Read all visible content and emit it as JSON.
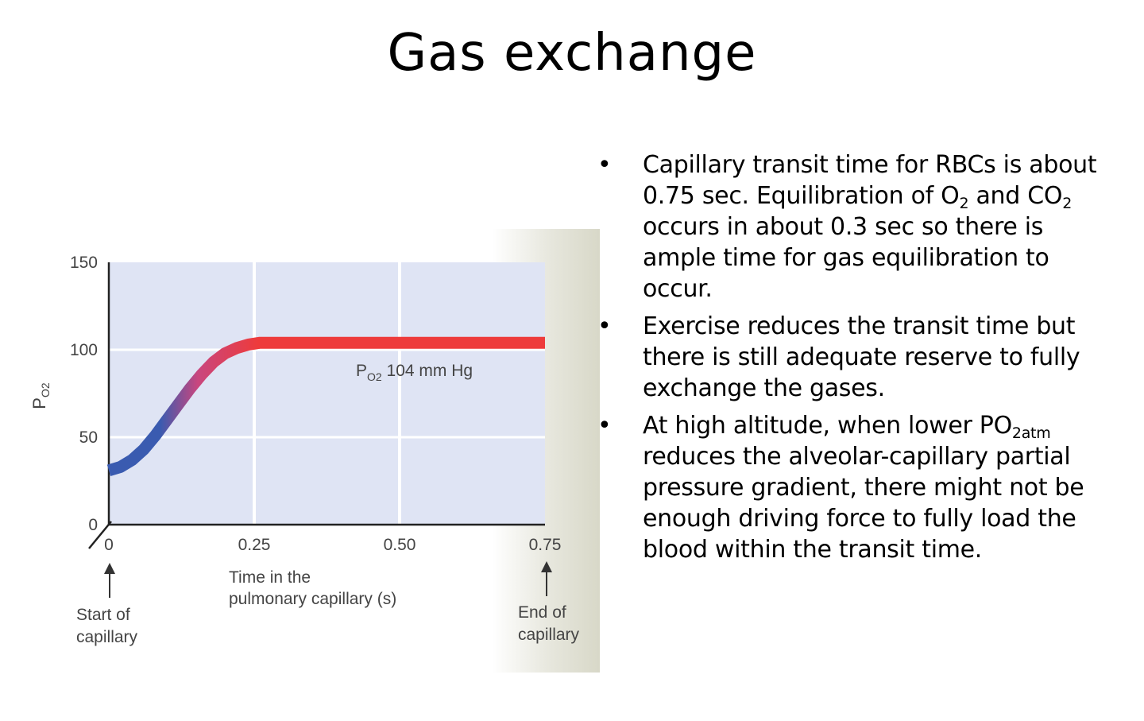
{
  "title": "Gas exchange",
  "chart_data": {
    "type": "line",
    "ylabel": "P",
    "ylabel_sub": "O2",
    "xlabel_line1": "Time in the",
    "xlabel_line2": "pulmonary capillary (s)",
    "xlim": [
      0,
      0.75
    ],
    "ylim": [
      0,
      150
    ],
    "x_ticks": [
      "0",
      "0.25",
      "0.50",
      "0.75"
    ],
    "x_tick_values": [
      0,
      0.25,
      0.5,
      0.75
    ],
    "y_ticks": [
      "150",
      "100",
      "50",
      "0"
    ],
    "y_tick_values": [
      150,
      100,
      50,
      0
    ],
    "grid": true,
    "series": [
      {
        "x": [
          0,
          0.02,
          0.04,
          0.06,
          0.08,
          0.1,
          0.12,
          0.14,
          0.16,
          0.18,
          0.2,
          0.22,
          0.24,
          0.26,
          0.3,
          0.4,
          0.5,
          0.6,
          0.75
        ],
        "y": [
          31,
          33,
          37,
          43,
          51,
          60,
          69,
          78,
          86,
          93,
          98,
          101,
          103,
          104,
          104,
          104,
          104,
          104,
          104
        ],
        "color_start": "#3a5bb0",
        "color_end": "#ee3b3b"
      }
    ],
    "annotation_main": "P",
    "annotation_sub": "O2",
    "annotation_rest": " 104 mm Hg",
    "start_label_line1": "Start of",
    "start_label_line2": "capillary",
    "end_label_line1": "End of",
    "end_label_line2": "capillary",
    "plot_bg": "#dfe4f4"
  },
  "bullets": {
    "b1": {
      "dot": "•",
      "t1": "Capillary transit time for RBCs is about 0.75 sec. Equilibration of O",
      "s1": "2",
      "t2": " and CO",
      "s2": "2",
      "t3": " occurs in about 0.3 sec so there is ample time for gas equilibration to occur."
    },
    "b2": {
      "dot": "•",
      "text": "Exercise reduces the transit time but there is still adequate reserve to fully exchange the gases."
    },
    "b3": {
      "dot": "•",
      "t1": "At high altitude, when lower PO",
      "s1": "2atm",
      "t2": " reduces the alveolar-capillary partial pressure gradient, there might not be enough driving force to fully load the blood within the transit time."
    }
  }
}
